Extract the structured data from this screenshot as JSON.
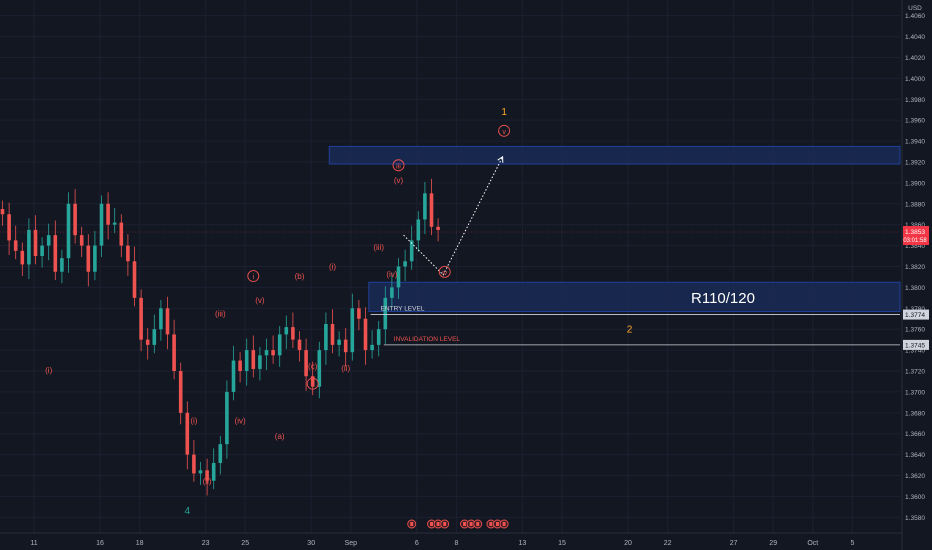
{
  "colors": {
    "background": "#131722",
    "grid": "#1c2030",
    "up": "#26a69a",
    "down": "#ef5350",
    "zone_fill": "#1a2a55",
    "zone_stroke": "#2962ff",
    "wave_label": "#ef5350",
    "major_label": "#ffa726",
    "alt_label": "#26a69a",
    "level_line": "#d1d4dc",
    "price_marker": "#f23645"
  },
  "chart_data": {
    "type": "candlestick",
    "y_axis": {
      "unit": "USD",
      "ylim": [
        1.3565,
        1.4075
      ],
      "ticks": [
        "1.3580",
        "1.3600",
        "1.3620",
        "1.3640",
        "1.3660",
        "1.3680",
        "1.3700",
        "1.3720",
        "1.3740",
        "1.3760",
        "1.3780",
        "1.3800",
        "1.3820",
        "1.3840",
        "1.3860",
        "1.3880",
        "1.3900",
        "1.3920",
        "1.3940",
        "1.3960",
        "1.3980",
        "1.4000",
        "1.4020",
        "1.4040",
        "1.4060"
      ]
    },
    "x_axis": {
      "labels": [
        {
          "bar": 5,
          "text": "11"
        },
        {
          "bar": 15,
          "text": "16"
        },
        {
          "bar": 21,
          "text": "18"
        },
        {
          "bar": 31,
          "text": "23"
        },
        {
          "bar": 37,
          "text": "25"
        },
        {
          "bar": 47,
          "text": "30"
        },
        {
          "bar": 53,
          "text": "Sep"
        },
        {
          "bar": 63,
          "text": "6"
        },
        {
          "bar": 69,
          "text": "8"
        },
        {
          "bar": 79,
          "text": "13"
        },
        {
          "bar": 85,
          "text": "15"
        },
        {
          "bar": 95,
          "text": "20"
        },
        {
          "bar": 101,
          "text": "22"
        },
        {
          "bar": 111,
          "text": "27"
        },
        {
          "bar": 117,
          "text": "29"
        },
        {
          "bar": 123,
          "text": "Oct"
        },
        {
          "bar": 129,
          "text": "5"
        }
      ]
    },
    "candles": [
      1.387,
      1.3845,
      1.3835,
      1.3822,
      1.3855,
      1.383,
      1.384,
      1.385,
      1.3815,
      1.3828,
      1.388,
      1.385,
      1.384,
      1.3815,
      1.384,
      1.388,
      1.386,
      1.3862,
      1.384,
      1.3825,
      1.379,
      1.375,
      1.3745,
      1.376,
      1.378,
      1.3755,
      1.372,
      1.368,
      1.364,
      1.3622,
      1.3625,
      1.3615,
      1.3632,
      1.365,
      1.37,
      1.373,
      1.372,
      1.374,
      1.3722,
      1.3735,
      1.374,
      1.3735,
      1.3755,
      1.3762,
      1.375,
      1.374,
      1.3715,
      1.3705,
      1.374,
      1.3765,
      1.3745,
      1.375,
      1.3738,
      1.378,
      1.377,
      1.374,
      1.3745,
      1.376,
      1.379,
      1.38,
      1.382,
      1.3825,
      1.3845,
      1.3865,
      1.389,
      1.3858,
      1.3855
    ],
    "y_bounds_labels": {
      "current_price": 1.3853,
      "countdown": "03:01:58",
      "level_1": 1.3774,
      "level_2": 1.3745
    },
    "zones": [
      {
        "y_top": 1.3935,
        "y_bottom": 1.3918,
        "bar_start": 47,
        "bar_end": 134
      },
      {
        "y_top": 1.3805,
        "y_bottom": 1.3777,
        "bar_start": 53,
        "bar_end": 134
      }
    ],
    "horizontal_levels": [
      {
        "y": 1.3774,
        "label": "ENTRY LEVEL",
        "style": "solid"
      },
      {
        "y": 1.3745,
        "label": "INVALIDATION LEVEL",
        "style": "solid"
      }
    ],
    "projection_path": [
      {
        "bar": 61,
        "y": 1.385
      },
      {
        "bar": 67,
        "y": 1.3812
      },
      {
        "bar": 76,
        "y": 1.3925
      }
    ],
    "zone_label": "R110/120",
    "wave_labels": [
      {
        "bar": 7,
        "y": 1.3718,
        "text": "(i)",
        "style": "plain",
        "color": "wave_label"
      },
      {
        "bar": 38,
        "y": 1.3808,
        "text": "i",
        "style": "circled",
        "color": "wave_label"
      },
      {
        "bar": 45,
        "y": 1.3808,
        "text": "(b)",
        "style": "plain",
        "color": "wave_label"
      },
      {
        "bar": 50,
        "y": 1.3817,
        "text": "(i)",
        "style": "plain",
        "color": "wave_label"
      },
      {
        "bar": 39,
        "y": 1.3785,
        "text": "(v)",
        "style": "plain",
        "color": "wave_label"
      },
      {
        "bar": 33,
        "y": 1.3772,
        "text": "(iii)",
        "style": "plain",
        "color": "wave_label"
      },
      {
        "bar": 47,
        "y": 1.3722,
        "text": "(c)",
        "style": "plain",
        "color": "wave_label"
      },
      {
        "bar": 47,
        "y": 1.3705,
        "text": "ii",
        "style": "circled",
        "color": "wave_label"
      },
      {
        "bar": 52,
        "y": 1.372,
        "text": "(ii)",
        "style": "plain",
        "color": "wave_label"
      },
      {
        "bar": 36,
        "y": 1.367,
        "text": "(iv)",
        "style": "plain",
        "color": "wave_label"
      },
      {
        "bar": 42,
        "y": 1.3655,
        "text": "(a)",
        "style": "plain",
        "color": "wave_label"
      },
      {
        "bar": 29,
        "y": 1.367,
        "text": "(i)",
        "style": "plain",
        "color": "wave_label"
      },
      {
        "bar": 31,
        "y": 1.3612,
        "text": "(ii)",
        "style": "plain",
        "color": "wave_label"
      },
      {
        "bar": 28,
        "y": 1.3583,
        "text": "4",
        "style": "plain",
        "color": "alt_label"
      },
      {
        "bar": 57,
        "y": 1.3836,
        "text": "(iii)",
        "style": "plain",
        "color": "wave_label"
      },
      {
        "bar": 59,
        "y": 1.381,
        "text": "(iv)",
        "style": "plain",
        "color": "wave_label"
      },
      {
        "bar": 60,
        "y": 1.39,
        "text": "(v)",
        "style": "plain",
        "color": "wave_label"
      },
      {
        "bar": 60,
        "y": 1.3914,
        "text": "iii",
        "style": "circled",
        "color": "wave_label"
      },
      {
        "bar": 67,
        "y": 1.3812,
        "text": "iv",
        "style": "circled",
        "color": "wave_label"
      },
      {
        "bar": 76,
        "y": 1.3947,
        "text": "v",
        "style": "circled",
        "color": "wave_label"
      },
      {
        "bar": 76,
        "y": 1.3965,
        "text": "1",
        "style": "plain",
        "color": "major_label"
      },
      {
        "bar": 95,
        "y": 1.3757,
        "text": "2",
        "style": "plain",
        "color": "major_label"
      }
    ],
    "event_markers": {
      "bars": [
        62,
        65,
        66,
        67,
        70,
        71,
        72,
        74,
        75,
        76
      ],
      "icon": "flag-icon"
    }
  }
}
